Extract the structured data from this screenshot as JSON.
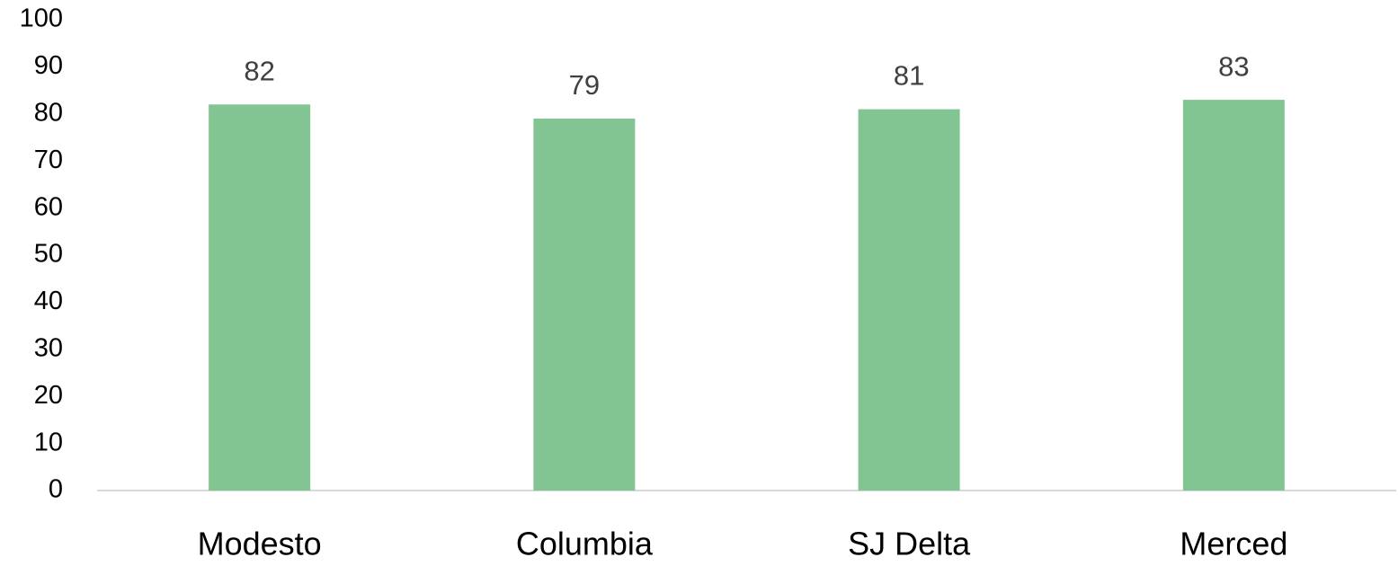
{
  "chart_data": {
    "type": "bar",
    "categories": [
      "Modesto",
      "Columbia",
      "SJ Delta",
      "Merced"
    ],
    "values": [
      82,
      79,
      81,
      83
    ],
    "color": "#82c593",
    "ylim": [
      0,
      100
    ],
    "yticks": [
      0,
      10,
      20,
      30,
      40,
      50,
      60,
      70,
      80,
      90,
      100
    ],
    "grid": false
  }
}
